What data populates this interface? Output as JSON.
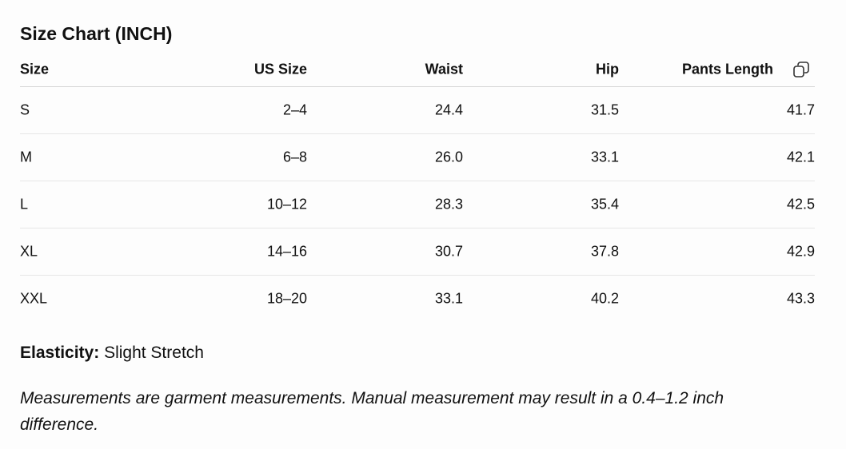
{
  "header": {
    "title": "Size Chart (INCH)"
  },
  "table": {
    "columns": [
      "Size",
      "US Size",
      "Waist",
      "Hip",
      "Pants Length"
    ],
    "rows": [
      [
        "S",
        "2–4",
        "24.4",
        "31.5",
        "41.7"
      ],
      [
        "M",
        "6–8",
        "26.0",
        "33.1",
        "42.1"
      ],
      [
        "L",
        "10–12",
        "28.3",
        "35.4",
        "42.5"
      ],
      [
        "XL",
        "14–16",
        "30.7",
        "37.8",
        "42.9"
      ],
      [
        "XXL",
        "18–20",
        "33.1",
        "40.2",
        "43.3"
      ]
    ]
  },
  "elasticity": {
    "label": "Elasticity:",
    "value": "Slight Stretch"
  },
  "note": "Measurements are garment measurements. Manual measurement may result in a 0.4–1.2 inch difference."
}
